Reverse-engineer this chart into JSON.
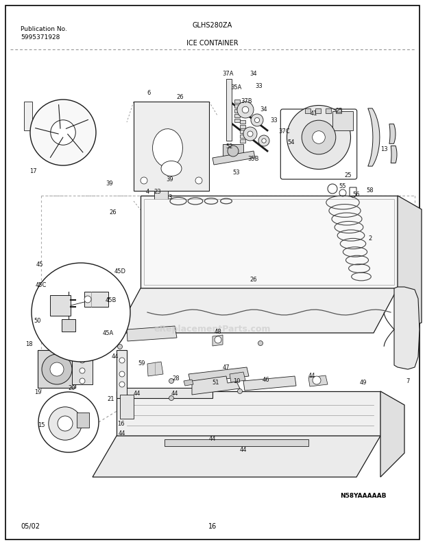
{
  "title_model": "GLHS280ZA",
  "title_section": "ICE CONTAINER",
  "pub_label": "Publication No.",
  "pub_number": "5995371928",
  "date_code": "05/02",
  "page_number": "16",
  "diagram_code": "N58YAAAAAB",
  "border_color": "#000000",
  "bg_color": "#ffffff",
  "text_color": "#000000",
  "fig_width": 6.2,
  "fig_height": 7.94,
  "dpi": 100
}
